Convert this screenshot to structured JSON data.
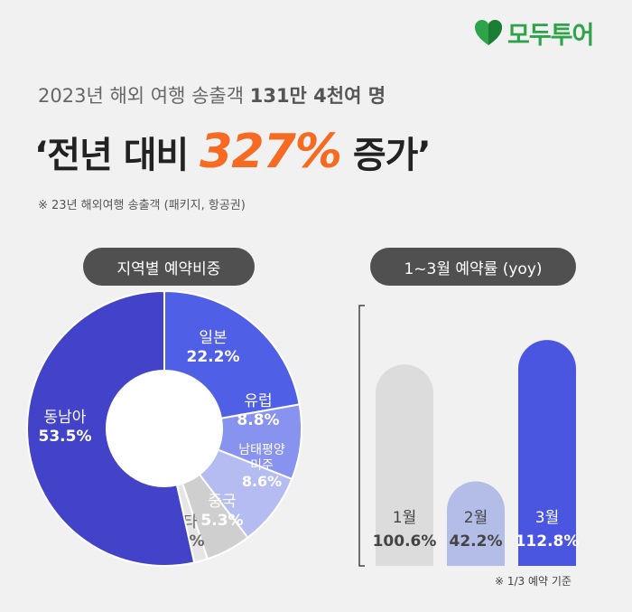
{
  "brand": {
    "name": "모두투어",
    "logo_color": "#2ea34a"
  },
  "headline": {
    "sub_prefix": "2023년 해외 여행 송출객 ",
    "sub_bold": "131만 4천여 명",
    "main_prefix": "‘전년 대비 ",
    "main_highlight": "327%",
    "main_suffix": " 증가’",
    "highlight_color": "#f76a22"
  },
  "note": "※ 23년 해외여행 송출객 (패키지, 항공권)",
  "chart_data": [
    {
      "type": "pie",
      "title": "지역별 예약비중",
      "slices": [
        {
          "label": "일본",
          "value": 22.2,
          "value_label": "22.2%",
          "color": "#5060e6"
        },
        {
          "label": "유럽",
          "value": 8.8,
          "value_label": "8.8%",
          "color": "#8892ef"
        },
        {
          "label": "남태평양\n미주",
          "value": 8.6,
          "value_label": "8.6%",
          "color": "#b4bcf2"
        },
        {
          "label": "중국",
          "value": 5.3,
          "value_label": "5.3%",
          "color": "#cfcfcf"
        },
        {
          "label": "기타",
          "value": 1.6,
          "value_label": "1.6%",
          "color": "#e6e6e6"
        },
        {
          "label": "동남아",
          "value": 53.5,
          "value_label": "53.5%",
          "color": "#4343c9"
        }
      ]
    },
    {
      "type": "bar",
      "title": "1~3월 예약률 (yoy)",
      "categories": [
        "1월",
        "2월",
        "3월"
      ],
      "values": [
        100.6,
        42.2,
        112.8
      ],
      "value_labels": [
        "100.6%",
        "42.2%",
        "112.8%"
      ],
      "colors": [
        "#dcdcdc",
        "#b3bde8",
        "#4a55e0"
      ],
      "ylim": [
        0,
        130
      ],
      "footnote": "※ 1/3 예약 기준"
    }
  ]
}
